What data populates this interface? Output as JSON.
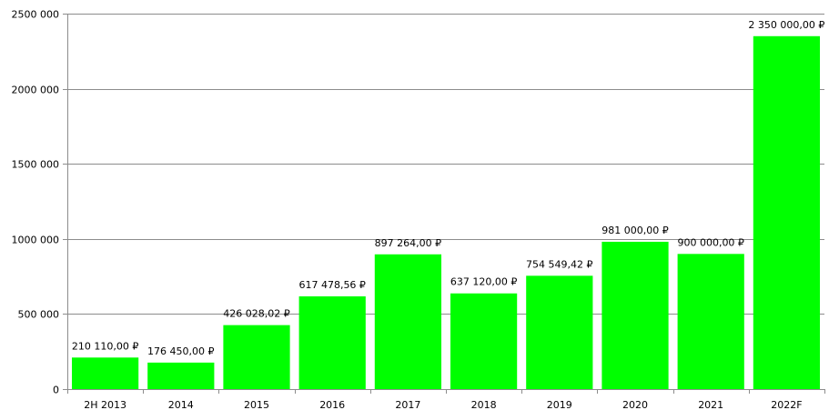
{
  "chart_data": {
    "type": "bar",
    "categories": [
      "2H 2013",
      "2014",
      "2015",
      "2016",
      "2017",
      "2018",
      "2019",
      "2020",
      "2021",
      "2022F"
    ],
    "values": [
      210110.0,
      176450.0,
      426028.02,
      617478.56,
      897264.0,
      637120.0,
      754549.42,
      981000.0,
      900000.0,
      2350000.0
    ],
    "data_labels": [
      "210 110,00 ₽",
      "176 450,00 ₽",
      "426 028,02 ₽",
      "617 478,56 ₽",
      "897 264,00 ₽",
      "637 120,00 ₽",
      "754 549,42 ₽",
      "981 000,00 ₽",
      "900 000,00 ₽",
      "2 350 000,00 ₽"
    ],
    "y_ticks": [
      0,
      500000,
      1000000,
      1500000,
      2000000,
      2500000
    ],
    "y_tick_labels": [
      "0",
      "500 000",
      "1000 000",
      "1500 000",
      "2000 000",
      "2500 000"
    ],
    "ylim": [
      0,
      2500000
    ],
    "grid": true,
    "legend": "none",
    "bar_color": "#00ff00",
    "title": "",
    "xlabel": "",
    "ylabel": ""
  }
}
